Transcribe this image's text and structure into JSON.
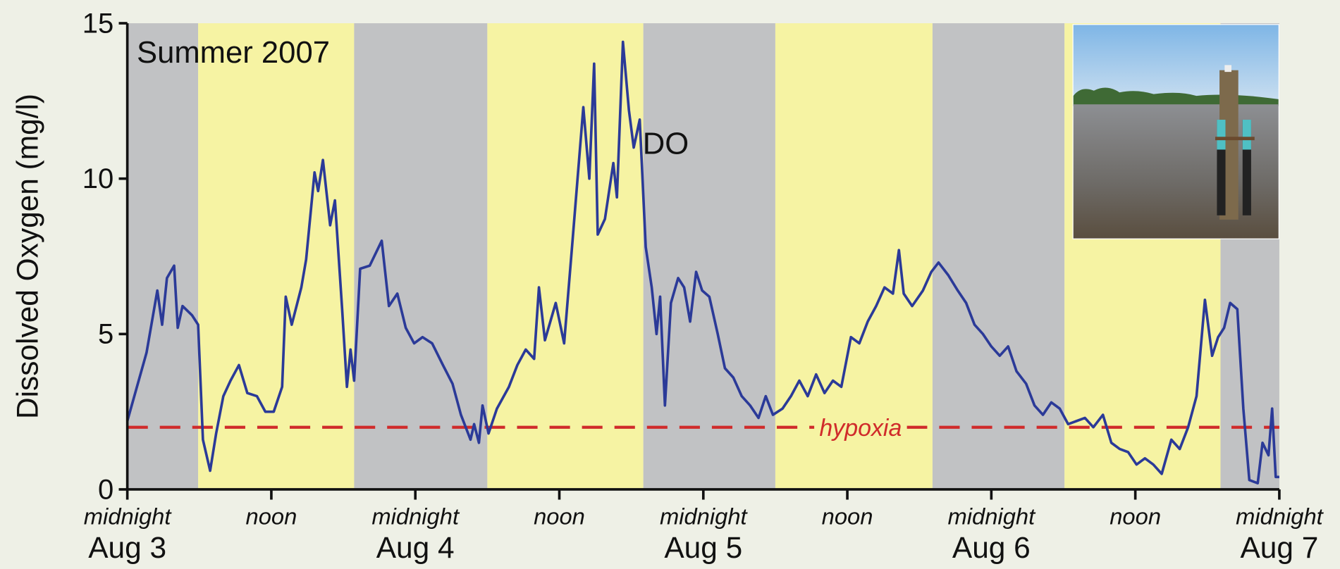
{
  "chart_data": {
    "type": "line",
    "title": "Summer 2007",
    "y_label": "Dissolved Oxygen (mg/l)",
    "xlim": [
      0,
      96
    ],
    "xticks": [
      {
        "value": 0,
        "label": "midnight"
      },
      {
        "value": 12,
        "label": "noon"
      },
      {
        "value": 24,
        "label": "midnight"
      },
      {
        "value": 36,
        "label": "noon"
      },
      {
        "value": 48,
        "label": "midnight"
      },
      {
        "value": 60,
        "label": "noon"
      },
      {
        "value": 72,
        "label": "midnight"
      },
      {
        "value": 84,
        "label": "noon"
      },
      {
        "value": 96,
        "label": "midnight"
      }
    ],
    "date_labels": [
      {
        "value": 0,
        "label": "Aug 3"
      },
      {
        "value": 24,
        "label": "Aug 4"
      },
      {
        "value": 48,
        "label": "Aug 5"
      },
      {
        "value": 72,
        "label": "Aug 6"
      },
      {
        "value": 96,
        "label": "Aug 7"
      }
    ],
    "ylim": [
      0,
      15
    ],
    "yticks": [
      0,
      5,
      10,
      15
    ],
    "bands": [
      {
        "start": 0,
        "end": 5.9,
        "color": "#c1c2c4"
      },
      {
        "start": 5.9,
        "end": 18.9,
        "color": "#f6f3a3"
      },
      {
        "start": 18.9,
        "end": 30.0,
        "color": "#c1c2c4"
      },
      {
        "start": 30.0,
        "end": 43.0,
        "color": "#f6f3a3"
      },
      {
        "start": 43.0,
        "end": 54.0,
        "color": "#c1c2c4"
      },
      {
        "start": 54.0,
        "end": 67.1,
        "color": "#f6f3a3"
      },
      {
        "start": 67.1,
        "end": 78.1,
        "color": "#c1c2c4"
      },
      {
        "start": 78.1,
        "end": 91.1,
        "color": "#f6f3a3"
      },
      {
        "start": 91.1,
        "end": 96,
        "color": "#c1c2c4"
      }
    ],
    "hypoxia": {
      "value": 2,
      "label": "hypoxia",
      "color": "#d02b2b"
    },
    "series": [
      {
        "name": "DO",
        "color": "#2b3a98",
        "x": [
          0,
          1.6,
          2.5,
          2.9,
          3.3,
          3.9,
          4.2,
          4.6,
          5.4,
          5.9,
          6.3,
          6.9,
          7.4,
          8.0,
          8.6,
          9.3,
          10.0,
          10.8,
          11.5,
          12.2,
          12.9,
          13.2,
          13.7,
          14.5,
          14.9,
          15.6,
          15.9,
          16.3,
          16.9,
          17.3,
          17.9,
          18.3,
          18.6,
          18.9,
          19.4,
          20.2,
          21.2,
          21.8,
          22.5,
          23.2,
          23.9,
          24.6,
          25.4,
          26.3,
          27.1,
          27.8,
          28.6,
          28.9,
          29.3,
          29.6,
          30.1,
          30.8,
          31.8,
          32.5,
          33.2,
          33.9,
          34.3,
          34.8,
          35.7,
          36.4,
          37.1,
          38.0,
          38.5,
          38.9,
          39.2,
          39.8,
          40.5,
          40.8,
          41.3,
          41.8,
          42.2,
          42.7,
          43.2,
          43.7,
          44.1,
          44.4,
          44.8,
          45.3,
          45.9,
          46.4,
          46.9,
          47.4,
          47.9,
          48.5,
          49.2,
          49.8,
          50.5,
          51.2,
          51.9,
          52.6,
          53.2,
          53.8,
          54.6,
          55.3,
          56.0,
          56.7,
          57.4,
          58.1,
          58.8,
          59.5,
          60.3,
          61.0,
          61.7,
          62.4,
          63.1,
          63.8,
          64.3,
          64.7,
          65.4,
          66.3,
          67.0,
          67.6,
          68.4,
          69.2,
          69.9,
          70.6,
          71.3,
          72.0,
          72.7,
          73.4,
          74.1,
          74.9,
          75.6,
          76.3,
          77.0,
          77.7,
          78.4,
          79.1,
          79.8,
          80.5,
          81.3,
          82.0,
          82.7,
          83.4,
          84.1,
          84.8,
          85.5,
          86.2,
          87.0,
          87.7,
          88.4,
          89.1,
          89.8,
          90.4,
          90.9,
          91.4,
          91.9,
          92.5,
          93.0,
          93.5,
          94.2,
          94.6,
          95.1,
          95.4,
          95.7,
          96.0
        ],
        "values": [
          2.2,
          4.4,
          6.4,
          5.3,
          6.8,
          7.2,
          5.2,
          5.9,
          5.6,
          5.3,
          1.6,
          0.6,
          1.8,
          3.0,
          3.5,
          4.0,
          3.1,
          3.0,
          2.5,
          2.5,
          3.3,
          6.2,
          5.3,
          6.5,
          7.4,
          10.2,
          9.6,
          10.6,
          8.5,
          9.3,
          5.8,
          3.3,
          4.5,
          3.5,
          7.1,
          7.2,
          8.0,
          5.9,
          6.3,
          5.2,
          4.7,
          4.9,
          4.7,
          4.0,
          3.4,
          2.4,
          1.6,
          2.1,
          1.5,
          2.7,
          1.8,
          2.6,
          3.3,
          4.0,
          4.5,
          4.2,
          6.5,
          4.8,
          6.0,
          4.7,
          8.0,
          12.3,
          10.0,
          13.7,
          8.2,
          8.7,
          10.5,
          9.4,
          14.4,
          12.2,
          11.0,
          11.9,
          7.8,
          6.5,
          5.0,
          6.2,
          2.7,
          6.0,
          6.8,
          6.5,
          5.4,
          7.0,
          6.4,
          6.2,
          5.0,
          3.9,
          3.6,
          3.0,
          2.7,
          2.3,
          3.0,
          2.4,
          2.6,
          3.0,
          3.5,
          3.0,
          3.7,
          3.1,
          3.5,
          3.3,
          4.9,
          4.7,
          5.4,
          5.9,
          6.5,
          6.3,
          7.7,
          6.3,
          5.9,
          6.4,
          7.0,
          7.3,
          6.9,
          6.4,
          6.0,
          5.3,
          5.0,
          4.6,
          4.3,
          4.6,
          3.8,
          3.4,
          2.7,
          2.4,
          2.8,
          2.6,
          2.1,
          2.2,
          2.3,
          2.0,
          2.4,
          1.5,
          1.3,
          1.2,
          0.8,
          1.0,
          0.8,
          0.5,
          1.6,
          1.3,
          2.0,
          3.0,
          6.1,
          4.3,
          4.9,
          5.2,
          6.0,
          5.8,
          2.6,
          0.3,
          0.2,
          1.5,
          1.1,
          2.6,
          0.4,
          0.4
        ]
      }
    ]
  }
}
